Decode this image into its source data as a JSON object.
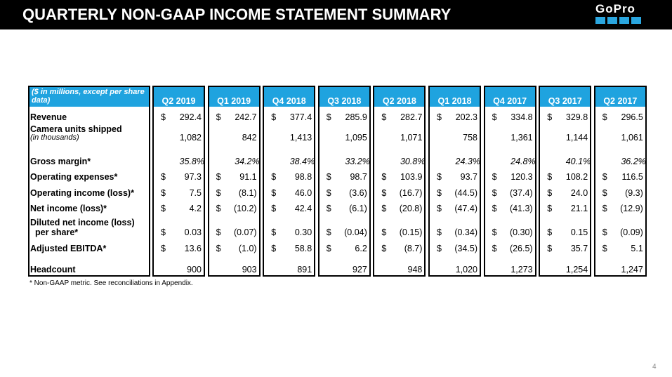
{
  "header": {
    "title": "QUARTERLY NON-GAAP INCOME STATEMENT SUMMARY",
    "logo": "GoPro"
  },
  "table": {
    "corner": "($ in millions, except per share data)",
    "columns": [
      "Q2 2019",
      "Q1 2019",
      "Q4 2018",
      "Q3 2018",
      "Q2 2018",
      "Q1 2018",
      "Q4 2017",
      "Q3 2017",
      "Q2 2017"
    ],
    "rows": [
      {
        "label": [
          "Revenue"
        ],
        "unit": "$",
        "values": [
          "292.4",
          "242.7",
          "377.4",
          "285.9",
          "282.7",
          "202.3",
          "334.8",
          "329.8",
          "296.5"
        ]
      },
      {
        "label": [
          "Camera units shipped",
          "(in thousands)"
        ],
        "values": [
          "1,082",
          "842",
          "1,413",
          "1,095",
          "1,071",
          "758",
          "1,361",
          "1,144",
          "1,061"
        ]
      },
      {
        "label": [
          "Gross margin*"
        ],
        "values": [
          "35.8%",
          "34.2%",
          "38.4%",
          "33.2%",
          "30.8%",
          "24.3%",
          "24.8%",
          "40.1%",
          "36.2%"
        ]
      },
      {
        "label": [
          "Operating expenses*"
        ],
        "unit": "$",
        "values": [
          "97.3",
          "91.1",
          "98.8",
          "98.7",
          "103.9",
          "93.7",
          "120.3",
          "108.2",
          "116.5"
        ]
      },
      {
        "label": [
          "Operating income (loss)*"
        ],
        "unit": "$",
        "values": [
          "7.5",
          "(8.1)",
          "46.0",
          "(3.6)",
          "(16.7)",
          "(44.5)",
          "(37.4)",
          "24.0",
          "(9.3)"
        ]
      },
      {
        "label": [
          "Net income (loss)*"
        ],
        "unit": "$",
        "values": [
          "4.2",
          "(10.2)",
          "42.4",
          "(6.1)",
          "(20.8)",
          "(47.4)",
          "(41.3)",
          "21.1",
          "(12.9)"
        ]
      },
      {
        "label": [
          "Diluted net income (loss)",
          "per share*"
        ],
        "unit": "$",
        "values": [
          "0.03",
          "(0.07)",
          "0.30",
          "(0.04)",
          "(0.15)",
          "(0.34)",
          "(0.30)",
          "0.15",
          "(0.09)"
        ]
      },
      {
        "label": [
          "Adjusted EBITDA*"
        ],
        "unit": "$",
        "values": [
          "13.6",
          "(1.0)",
          "58.8",
          "6.2",
          "(8.7)",
          "(34.5)",
          "(26.5)",
          "35.7",
          "5.1"
        ]
      },
      {
        "label": [
          "Headcount"
        ],
        "values": [
          "900",
          "903",
          "891",
          "927",
          "948",
          "1,020",
          "1,273",
          "1,254",
          "1,247"
        ]
      }
    ]
  },
  "footnote": "* Non-GAAP metric. See reconciliations in Appendix.",
  "page_number": "4"
}
